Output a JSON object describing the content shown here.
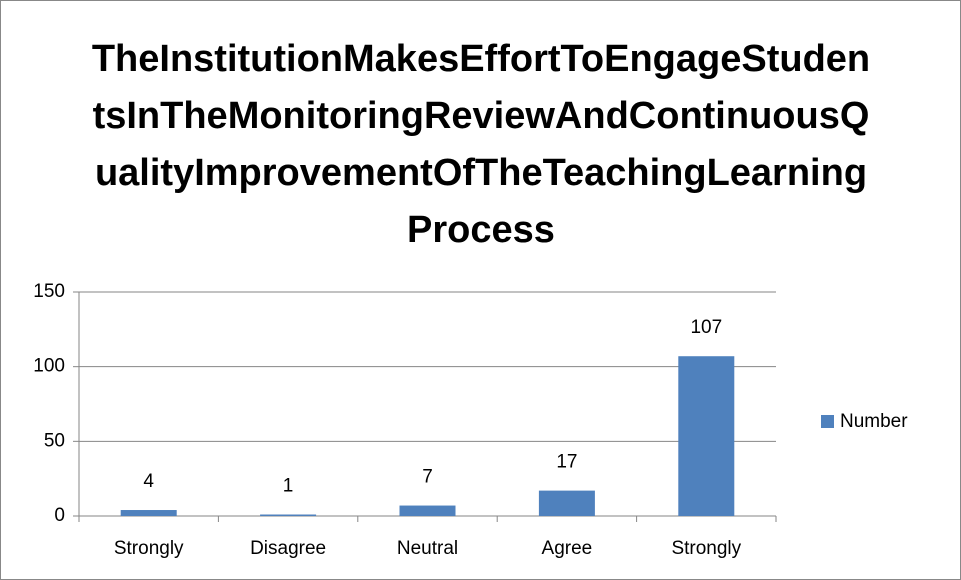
{
  "chart_data": {
    "type": "bar",
    "title": "TheInstitutionMakesEffortToEngageStudentsInTheMonitoringReviewAndContinuousQualityImprovementOfTheTeachingLearningProcess",
    "categories": [
      "Strongly",
      "Disagree",
      "Neutral",
      "Agree",
      "Strongly"
    ],
    "series": [
      {
        "name": "Number",
        "color": "#4f81bd",
        "values": [
          4,
          1,
          7,
          17,
          107
        ]
      }
    ],
    "ylim": [
      0,
      150
    ],
    "yticks": [
      0,
      50,
      100,
      150
    ],
    "grid": true,
    "legend": "right"
  }
}
